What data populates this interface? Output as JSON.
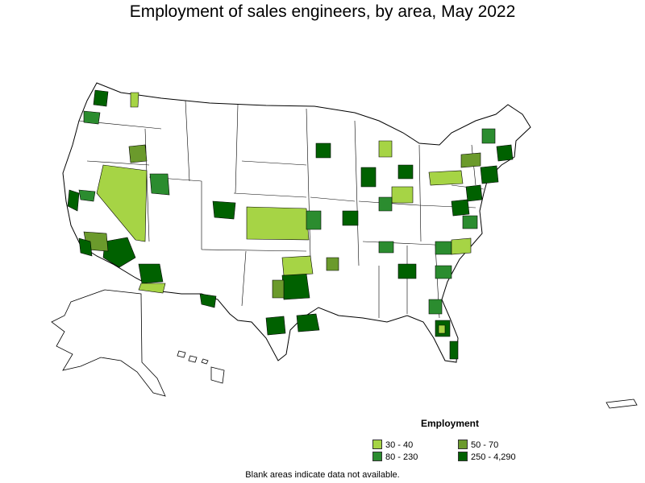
{
  "title": "Employment of sales engineers, by area, May 2022",
  "legend": {
    "title": "Employment",
    "items": [
      {
        "label": "30 - 40",
        "color": "#a6d445"
      },
      {
        "label": "50 - 70",
        "color": "#6b9a2c"
      },
      {
        "label": "80 - 230",
        "color": "#2b8c2f"
      },
      {
        "label": "250 - 4,290",
        "color": "#006100"
      }
    ]
  },
  "footnote": "Blank areas indicate data not available.",
  "colors": {
    "outline": "#000000",
    "nodata": "#ffffff"
  }
}
